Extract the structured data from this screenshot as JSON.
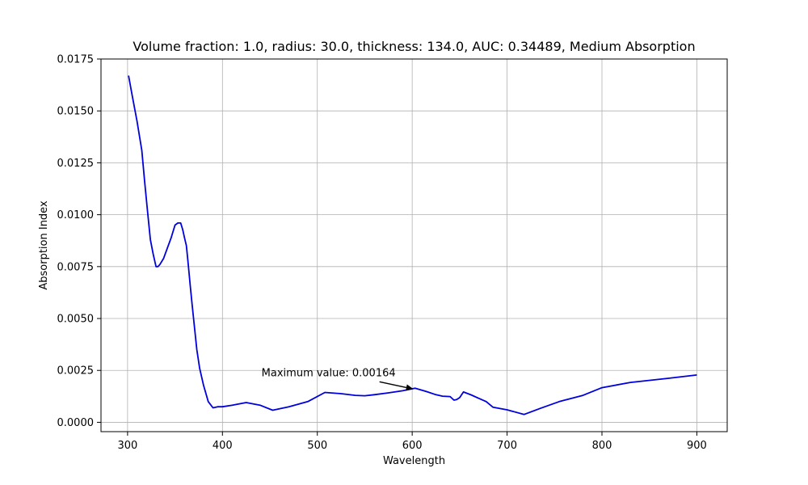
{
  "chart_data": {
    "type": "line",
    "title": "Volume fraction: 1.0, radius: 30.0, thickness: 134.0, AUC: 0.34489, Medium Absorption",
    "xlabel": "Wavelength",
    "ylabel": "Absorption Index",
    "xlim": [
      272,
      932
    ],
    "ylim": [
      -0.00045,
      0.0175
    ],
    "xticks": [
      300,
      400,
      500,
      600,
      700,
      800,
      900
    ],
    "xtick_labels": [
      "300",
      "400",
      "500",
      "600",
      "700",
      "800",
      "900"
    ],
    "yticks": [
      0.0,
      0.0025,
      0.005,
      0.0075,
      0.01,
      0.0125,
      0.015,
      0.0175
    ],
    "ytick_labels": [
      "0.0000",
      "0.0025",
      "0.0050",
      "0.0075",
      "0.0100",
      "0.0125",
      "0.0150",
      "0.0175"
    ],
    "grid": true,
    "series": [
      {
        "color": "#0000dd",
        "x": [
          301,
          305,
          310,
          315,
          318,
          321,
          324,
          327,
          330,
          332,
          334,
          338,
          342,
          346,
          350,
          353,
          356,
          358,
          360,
          362,
          364,
          366,
          368,
          370,
          373,
          376,
          380,
          385,
          390,
          395,
          400,
          410,
          425,
          440,
          453,
          470,
          490,
          508,
          525,
          540,
          550,
          560,
          575,
          590,
          603,
          615,
          625,
          632,
          640,
          644,
          647,
          650,
          654,
          662,
          670,
          678,
          685,
          700,
          718,
          735,
          755,
          780,
          800,
          830,
          870,
          900
        ],
        "y": [
          0.0167,
          0.0157,
          0.0145,
          0.0131,
          0.0116,
          0.0102,
          0.0088,
          0.0081,
          0.0075,
          0.0075,
          0.0076,
          0.0079,
          0.0084,
          0.0089,
          0.0095,
          0.0096,
          0.0096,
          0.0093,
          0.0089,
          0.0085,
          0.0076,
          0.0066,
          0.0057,
          0.0048,
          0.0035,
          0.0026,
          0.0018,
          0.001,
          0.0007,
          0.00075,
          0.00075,
          0.00082,
          0.00095,
          0.00082,
          0.00058,
          0.00075,
          0.001,
          0.00144,
          0.00138,
          0.0013,
          0.00128,
          0.00133,
          0.00142,
          0.00152,
          0.00164,
          0.00148,
          0.00133,
          0.00126,
          0.00124,
          0.00107,
          0.0011,
          0.00119,
          0.00146,
          0.00132,
          0.00116,
          0.001,
          0.00073,
          0.0006,
          0.00038,
          0.00067,
          0.001,
          0.0013,
          0.00167,
          0.00192,
          0.00212,
          0.00228
        ]
      }
    ],
    "annotation": {
      "text": "Maximum value: 0.00164",
      "point": [
        603,
        0.00164
      ]
    }
  }
}
